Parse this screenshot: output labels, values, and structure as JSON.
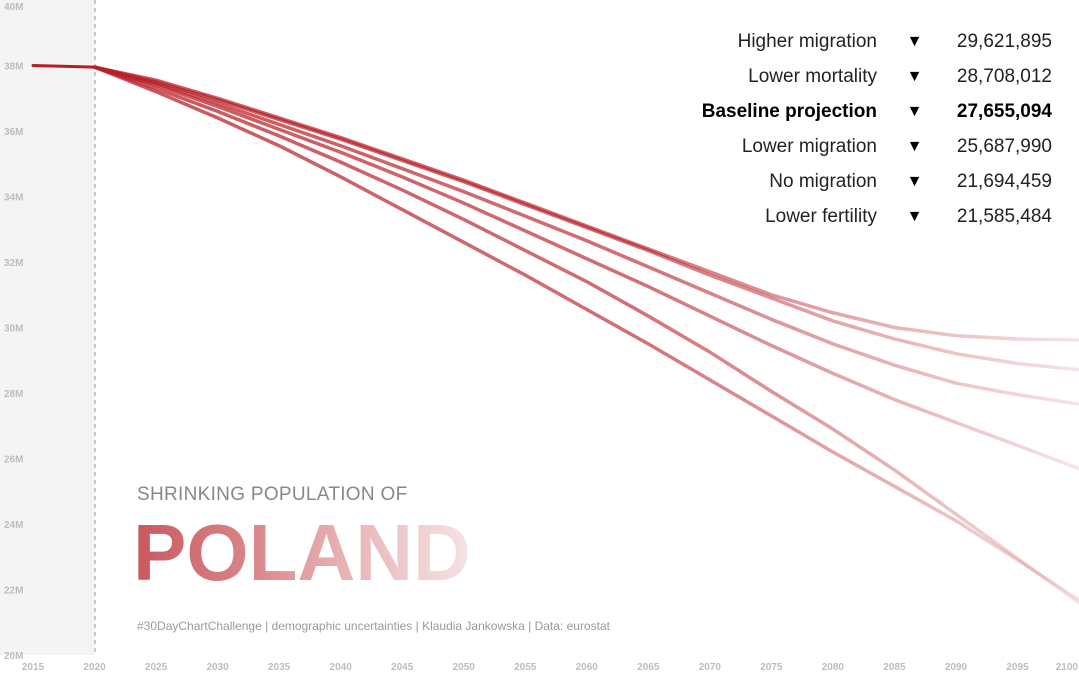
{
  "chart_data": {
    "type": "line",
    "title": "SHRINKING POPULATION OF",
    "title_big": "POLAND",
    "caption": "#30DayChartChallenge  |  demographic uncertainties  |  Klaudia Jankowska  |  Data: eurostat",
    "x_ticks": [
      "2015",
      "2020",
      "2025",
      "2030",
      "2035",
      "2040",
      "2045",
      "2050",
      "2055",
      "2060",
      "2065",
      "2070",
      "2075",
      "2080",
      "2085",
      "2090",
      "2095",
      "2100"
    ],
    "y_ticks": [
      "20M",
      "22M",
      "24M",
      "26M",
      "28M",
      "30M",
      "32M",
      "34M",
      "36M",
      "38M",
      "40M"
    ],
    "xlim": [
      2015,
      2100
    ],
    "ylim": [
      20,
      40
    ],
    "y_unit": "millions",
    "historical": {
      "x": [
        2015,
        2020
      ],
      "y": [
        38.0,
        37.95
      ]
    },
    "projection_start": 2020,
    "color": "#b81d25",
    "x": [
      2020,
      2025,
      2030,
      2035,
      2040,
      2045,
      2050,
      2055,
      2060,
      2065,
      2070,
      2075,
      2080,
      2085,
      2090,
      2095,
      2100
    ],
    "series": [
      {
        "name": "Higher migration",
        "value_label": "29,621,895",
        "values": [
          37.95,
          37.55,
          37.0,
          36.4,
          35.8,
          35.15,
          34.5,
          33.8,
          33.1,
          32.4,
          31.7,
          31.0,
          30.45,
          30.0,
          29.75,
          29.65,
          29.62
        ]
      },
      {
        "name": "Lower mortality",
        "value_label": "28,708,012",
        "values": [
          37.95,
          37.5,
          36.95,
          36.35,
          35.75,
          35.1,
          34.45,
          33.75,
          33.05,
          32.35,
          31.6,
          30.9,
          30.2,
          29.65,
          29.2,
          28.9,
          28.71
        ]
      },
      {
        "name": "Baseline projection",
        "value_label": "27,655,094",
        "highlight": true,
        "values": [
          37.95,
          37.45,
          36.85,
          36.2,
          35.55,
          34.85,
          34.15,
          33.4,
          32.65,
          31.85,
          31.05,
          30.25,
          29.5,
          28.85,
          28.3,
          27.95,
          27.66
        ]
      },
      {
        "name": "Lower migration",
        "value_label": "25,687,990",
        "values": [
          37.95,
          37.4,
          36.75,
          36.05,
          35.35,
          34.6,
          33.8,
          32.95,
          32.1,
          31.25,
          30.35,
          29.45,
          28.6,
          27.8,
          27.1,
          26.4,
          25.69
        ]
      },
      {
        "name": "No migration",
        "value_label": "21,694,459",
        "values": [
          37.95,
          37.2,
          36.4,
          35.55,
          34.6,
          33.6,
          32.6,
          31.6,
          30.55,
          29.5,
          28.4,
          27.3,
          26.2,
          25.15,
          24.1,
          22.9,
          21.69
        ]
      },
      {
        "name": "Lower fertility",
        "value_label": "21,585,484",
        "values": [
          37.95,
          37.3,
          36.6,
          35.85,
          35.05,
          34.2,
          33.3,
          32.35,
          31.4,
          30.35,
          29.25,
          28.05,
          26.9,
          25.65,
          24.3,
          22.95,
          21.59
        ]
      }
    ]
  }
}
